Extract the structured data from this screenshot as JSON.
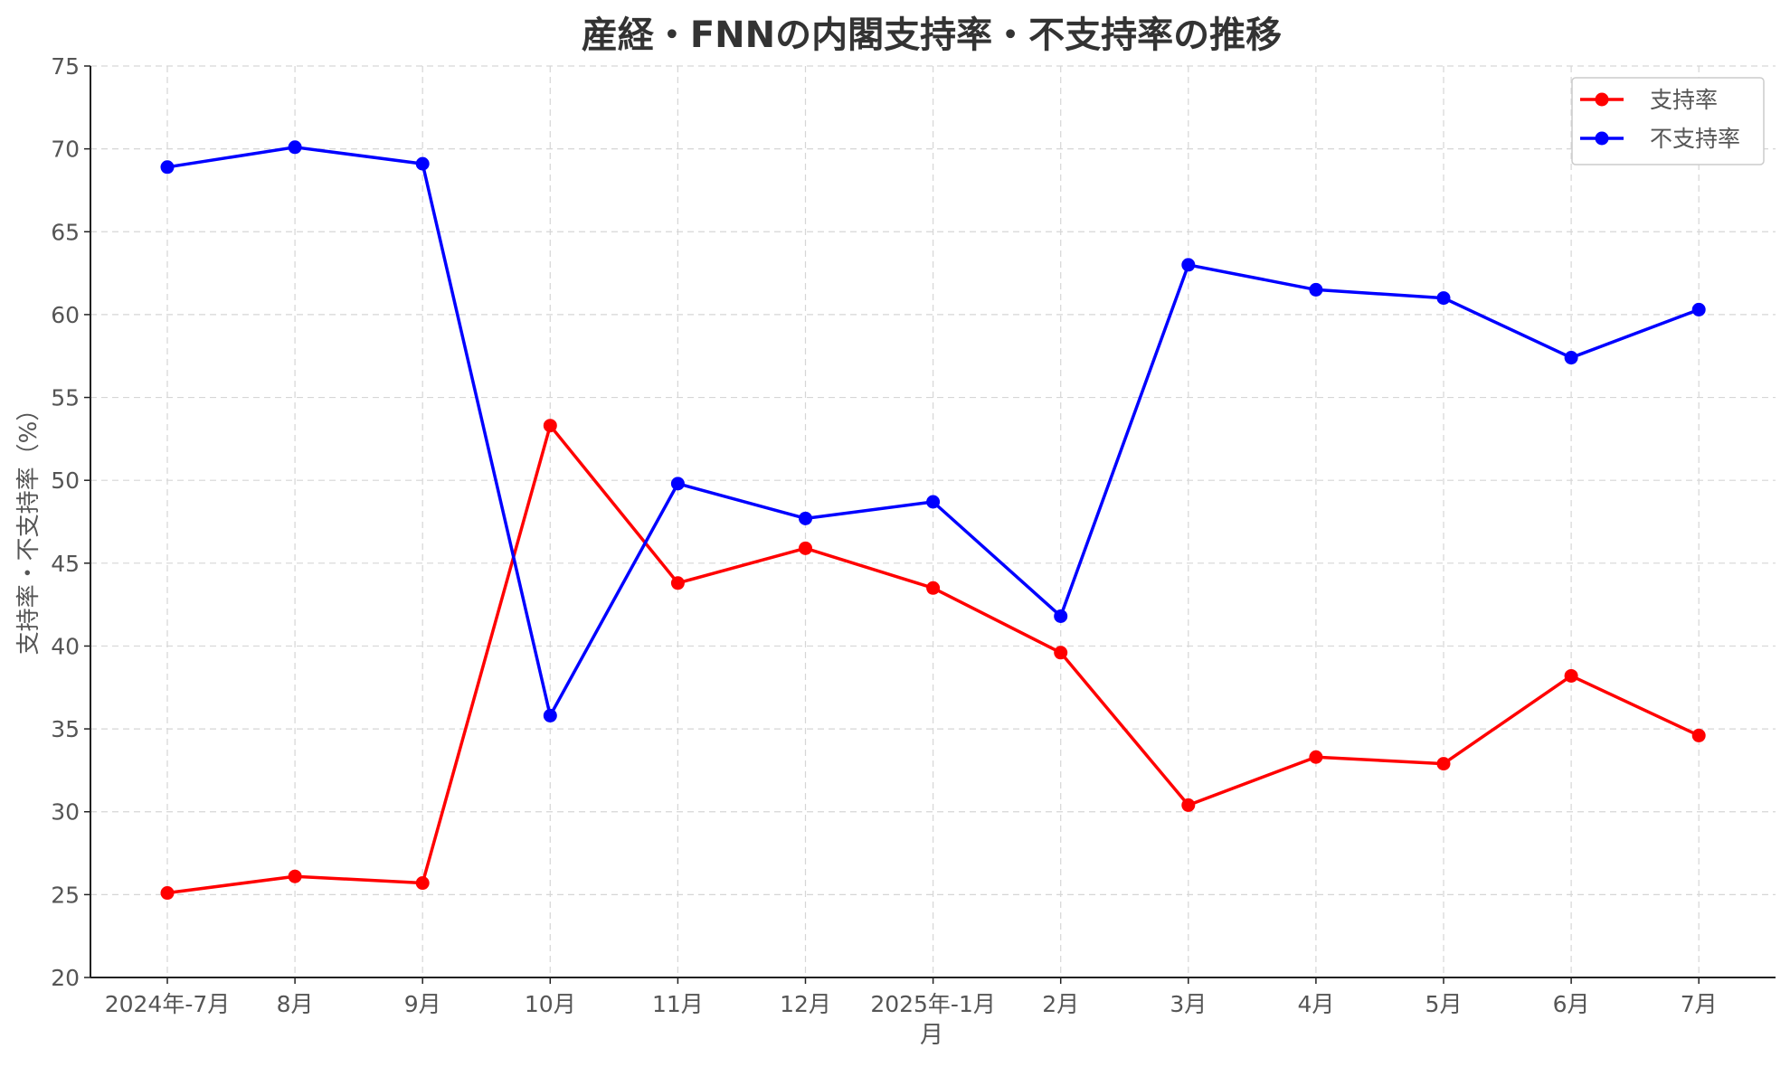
{
  "chart_data": {
    "type": "line",
    "title": "産経・FNNの内閣支持率・不支持率の推移",
    "xlabel": "月",
    "ylabel": "支持率・不支持率（%）",
    "categories": [
      "2024年-7月",
      "8月",
      "9月",
      "10月",
      "11月",
      "12月",
      "2025年-1月",
      "2月",
      "3月",
      "4月",
      "5月",
      "6月",
      "7月"
    ],
    "ylim": [
      20,
      75
    ],
    "yticks": [
      20,
      25,
      30,
      35,
      40,
      45,
      50,
      55,
      60,
      65,
      70,
      75
    ],
    "grid": true,
    "legend_position": "top-right",
    "series": [
      {
        "name": "支持率",
        "color": "#ff0000",
        "values": [
          25.1,
          26.1,
          25.7,
          53.3,
          43.8,
          45.9,
          43.5,
          39.6,
          30.4,
          33.3,
          32.9,
          38.2,
          34.6
        ]
      },
      {
        "name": "不支持率",
        "color": "#0000ff",
        "values": [
          68.9,
          70.1,
          69.1,
          35.8,
          49.8,
          47.7,
          48.7,
          41.8,
          63.0,
          61.5,
          61.0,
          57.4,
          60.3
        ]
      }
    ]
  }
}
